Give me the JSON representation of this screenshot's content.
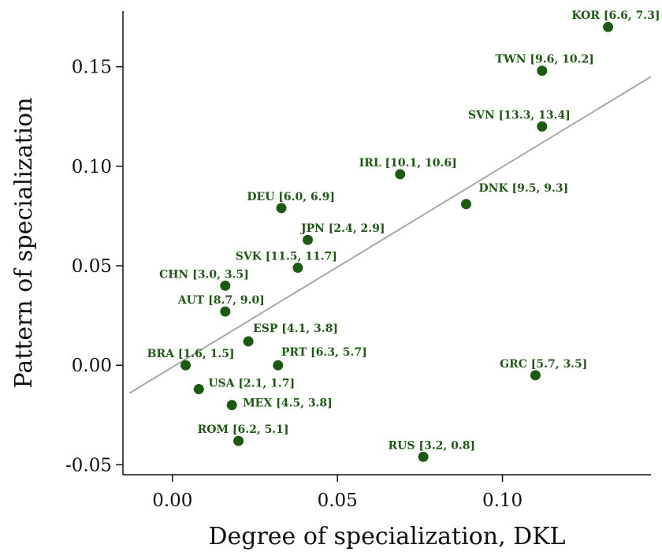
{
  "chart_data": {
    "type": "scatter",
    "xlabel": "Degree of specialization, DKL",
    "ylabel": "Pattern of specialization",
    "xlim": [
      -0.015,
      0.145
    ],
    "ylim": [
      -0.055,
      0.178
    ],
    "xticks": [
      0.0,
      0.05,
      0.1
    ],
    "yticks": [
      -0.05,
      0.0,
      0.05,
      0.1,
      0.15
    ],
    "xtick_labels": [
      "0.00",
      "0.05",
      "0.10"
    ],
    "ytick_labels": [
      "-0.05",
      "0.00",
      "0.05",
      "0.10",
      "0.15"
    ],
    "grid": false,
    "point_color": "#1c5a12",
    "fit_color": "#a8a8a8",
    "fit_line": {
      "x": [
        -0.013,
        0.145
      ],
      "y": [
        -0.014,
        0.145
      ]
    },
    "points": [
      {
        "label": "KOR [6.6, 7.3]",
        "x": 0.132,
        "y": 0.17
      },
      {
        "label": "TWN [9.6, 10.2]",
        "x": 0.112,
        "y": 0.148
      },
      {
        "label": "SVN [13.3, 13.4]",
        "x": 0.112,
        "y": 0.12
      },
      {
        "label": "IRL [10.1, 10.6]",
        "x": 0.069,
        "y": 0.096
      },
      {
        "label": "DNK [9.5, 9.3]",
        "x": 0.089,
        "y": 0.081
      },
      {
        "label": "DEU [6.0, 6.9]",
        "x": 0.033,
        "y": 0.079
      },
      {
        "label": "JPN [2.4, 2.9]",
        "x": 0.041,
        "y": 0.063
      },
      {
        "label": "SVK [11.5, 11.7]",
        "x": 0.038,
        "y": 0.049
      },
      {
        "label": "CHN [3.0, 3.5]",
        "x": 0.016,
        "y": 0.04
      },
      {
        "label": "AUT [8.7, 9.0]",
        "x": 0.016,
        "y": 0.027
      },
      {
        "label": "ESP [4.1, 3.8]",
        "x": 0.023,
        "y": 0.012
      },
      {
        "label": "BRA [1.6, 1.5]",
        "x": 0.004,
        "y": 0.0
      },
      {
        "label": "PRT [6.3, 5.7]",
        "x": 0.032,
        "y": 0.0
      },
      {
        "label": "GRC [5.7, 3.5]",
        "x": 0.11,
        "y": -0.005
      },
      {
        "label": "USA [2.1, 1.7]",
        "x": 0.008,
        "y": -0.012
      },
      {
        "label": "MEX [4.5, 3.8]",
        "x": 0.018,
        "y": -0.02
      },
      {
        "label": "ROM [6.2, 5.1]",
        "x": 0.02,
        "y": -0.038
      },
      {
        "label": "RUS [3.2, 0.8]",
        "x": 0.076,
        "y": -0.046
      }
    ]
  }
}
